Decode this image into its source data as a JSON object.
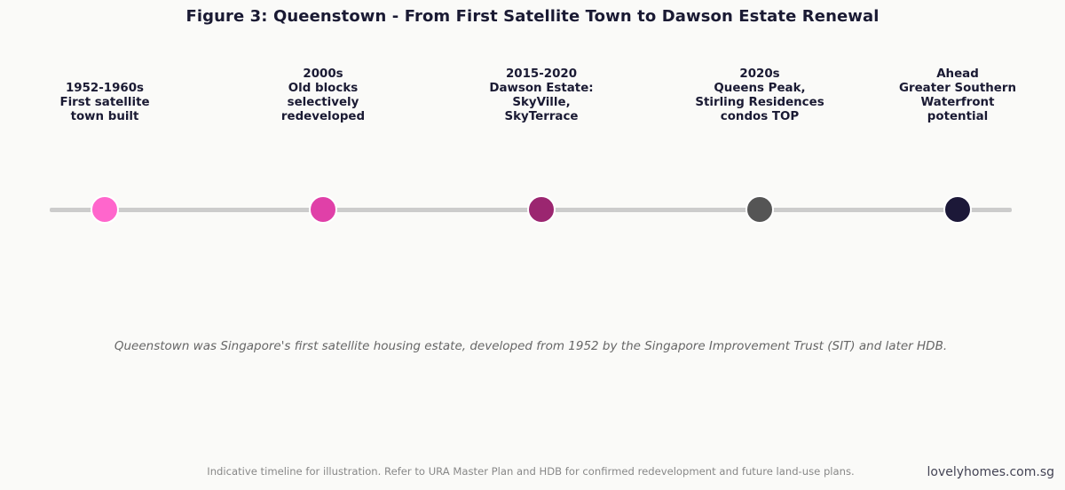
{
  "title": "Figure 3: Queenstown - From First Satellite Town to Dawson Estate Renewal",
  "milestones": [
    {
      "lines": [
        "1952-1960s",
        "First satellite",
        "town built"
      ],
      "color": "#ff66cc"
    },
    {
      "lines": [
        "2000s",
        "Old blocks",
        "selectively",
        "redeveloped"
      ],
      "color": "#e040a8"
    },
    {
      "lines": [
        "2015-2020",
        "Dawson Estate:",
        "SkyVille,",
        "SkyTerrace"
      ],
      "color": "#9b2670"
    },
    {
      "lines": [
        "2020s",
        "Queens Peak,",
        "Stirling Residences",
        "condos TOP"
      ],
      "color": "#555555"
    },
    {
      "lines": [
        "Ahead",
        "Greater Southern",
        "Waterfront",
        "potential"
      ],
      "color": "#1c1838"
    }
  ],
  "caption": "Queenstown was Singapore's first satellite housing estate, developed from 1952 by the Singapore Improvement Trust (SIT) and later HDB.",
  "footnote": "Indicative timeline for illustration. Refer to URA Master Plan and HDB for confirmed redevelopment and future land-use plans.",
  "brand": "lovelyhomes.com.sg"
}
